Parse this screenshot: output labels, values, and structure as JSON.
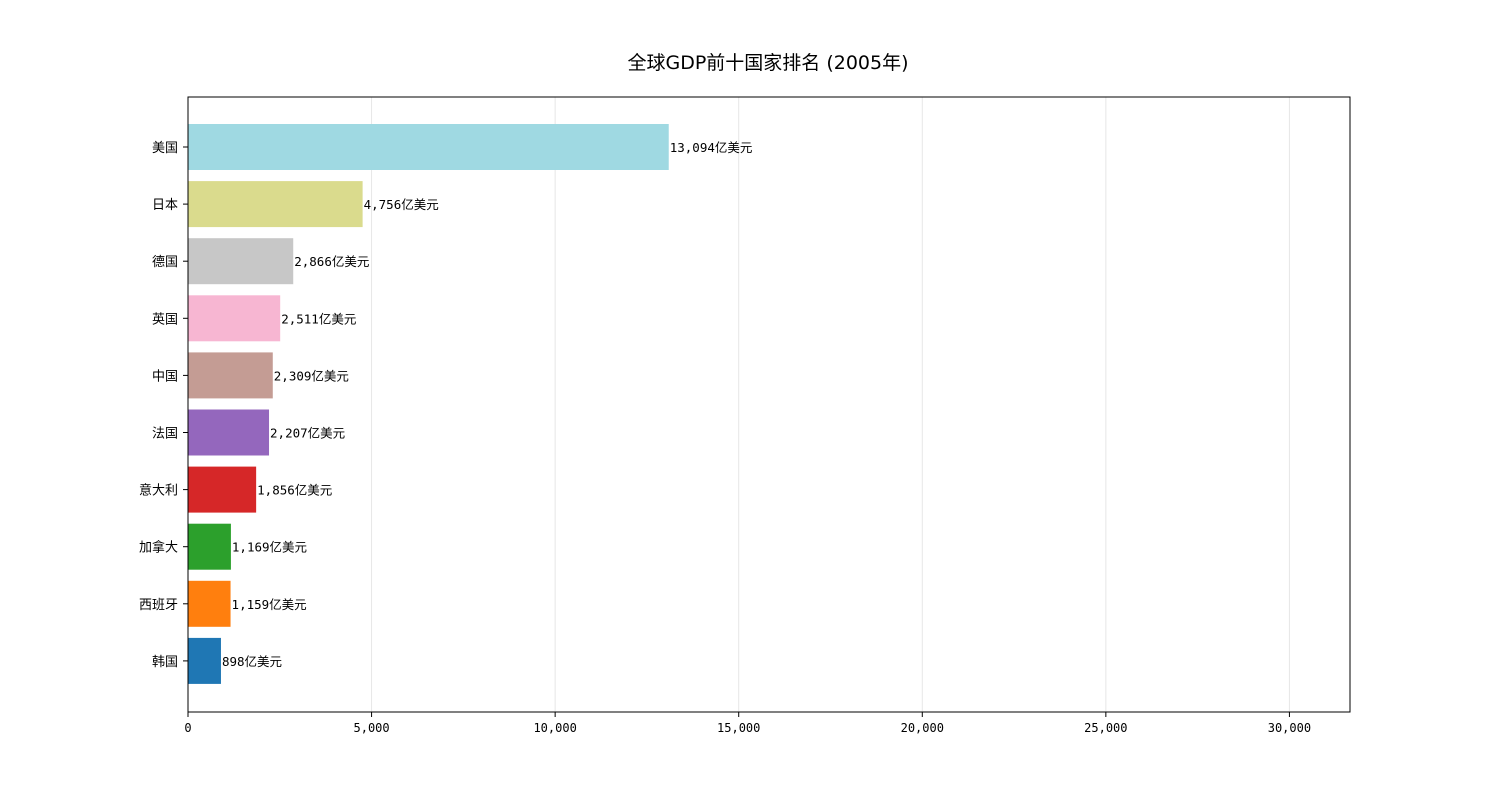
{
  "chart_data": {
    "type": "bar",
    "orientation": "horizontal",
    "title": "全球GDP前十国家排名 (2005年)",
    "xlabel": "",
    "ylabel": "",
    "categories": [
      "美国",
      "日本",
      "德国",
      "英国",
      "中国",
      "法国",
      "意大利",
      "加拿大",
      "西班牙",
      "韩国"
    ],
    "values": [
      13094,
      4756,
      2866,
      2511,
      2309,
      2207,
      1856,
      1169,
      1159,
      898
    ],
    "value_labels": [
      "13,094亿美元",
      "4,756亿美元",
      "2,866亿美元",
      "2,511亿美元",
      "2,309亿美元",
      "2,207亿美元",
      "1,856亿美元",
      "1,169亿美元",
      "1,159亿美元",
      "898亿美元"
    ],
    "colors": [
      "#9fd9e2",
      "#dadb8d",
      "#c7c7c7",
      "#f7b6d2",
      "#c49c94",
      "#9467bd",
      "#d62728",
      "#2ca02c",
      "#ff7f0e",
      "#1f77b4"
    ],
    "xlim": [
      0,
      31650
    ],
    "xticks": [
      0,
      5000,
      10000,
      15000,
      20000,
      25000,
      30000
    ],
    "xtick_labels": [
      "0",
      "5,000",
      "10,000",
      "15,000",
      "20,000",
      "25,000",
      "30,000"
    ],
    "grid": "vertical",
    "grid_color": "#e6e6e6"
  }
}
